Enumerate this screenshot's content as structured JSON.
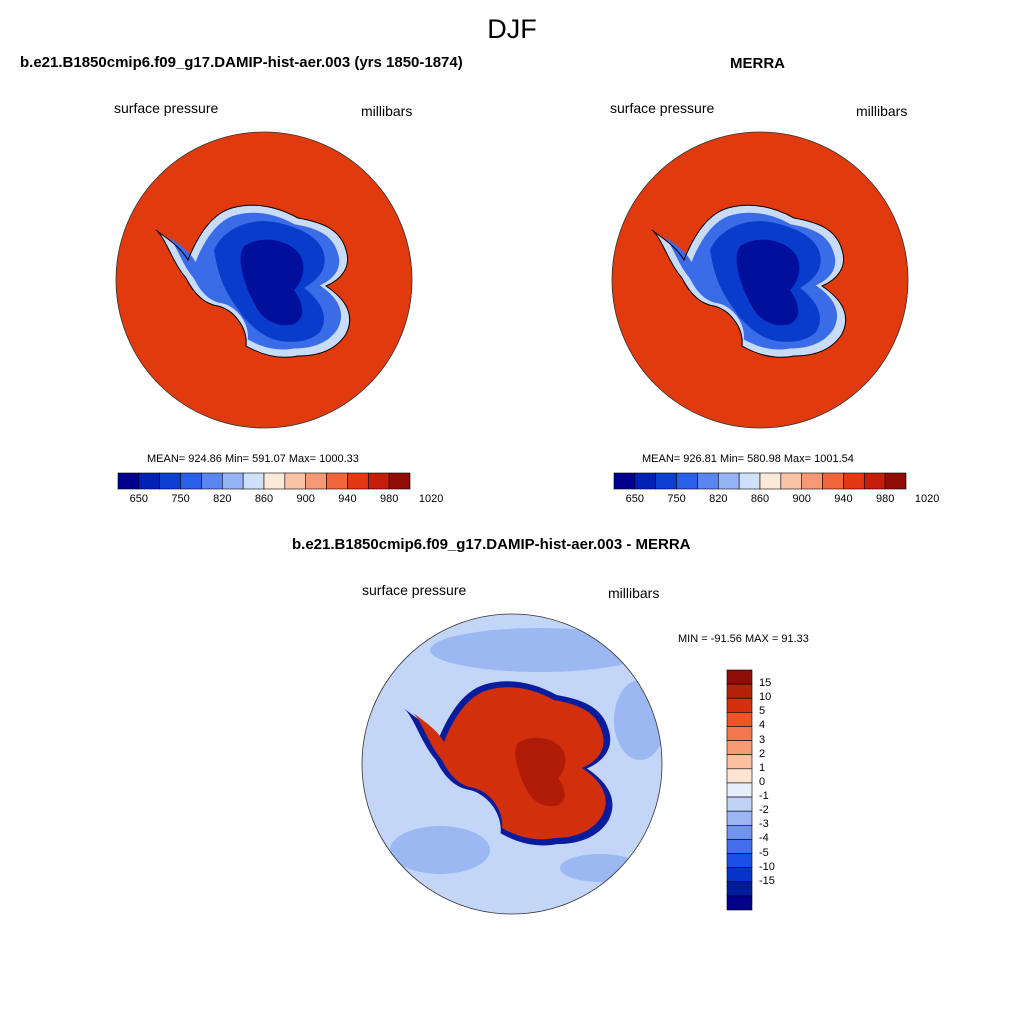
{
  "season": "DJF",
  "panels": [
    {
      "title": "b.e21.B1850cmip6.f09_g17.DAMIP-hist-aer.003 (yrs 1850-1874)",
      "variable": "surface pressure",
      "units": "millibars",
      "stats": "MEAN= 924.86  Min= 591.07  Max= 1000.33"
    },
    {
      "title": "MERRA",
      "variable": "surface pressure",
      "units": "millibars",
      "stats": "MEAN= 926.81  Min= 580.98  Max= 1001.54"
    }
  ],
  "diff_panel": {
    "title": "b.e21.B1850cmip6.f09_g17.DAMIP-hist-aer.003 - MERRA",
    "variable": "surface pressure",
    "units": "millibars",
    "stats": "MIN = -91.56 MAX =  91.33"
  },
  "abs_colorbar": {
    "colors": [
      "#00008c",
      "#0022b4",
      "#0a3fd2",
      "#2a5fe8",
      "#5b86f0",
      "#95b4f6",
      "#cfe0fb",
      "#fde9da",
      "#f9c3a6",
      "#f59a75",
      "#f0673e",
      "#e63512",
      "#c41e0a",
      "#8e0d06"
    ],
    "tick_labels": [
      "650",
      "750",
      "820",
      "860",
      "900",
      "940",
      "980",
      "1020"
    ]
  },
  "diff_colorbar": {
    "colors": [
      "#8e0d06",
      "#b42008",
      "#d4300c",
      "#f0522a",
      "#f5774c",
      "#f89c76",
      "#fbc0a0",
      "#fde4d2",
      "#e6eefc",
      "#c0d2f6",
      "#9bb6f2",
      "#6f93ee",
      "#4270ec",
      "#1a4fe8",
      "#0634c8",
      "#001c9c",
      "#00008a"
    ],
    "tick_labels": [
      "15",
      "10",
      "5",
      "4",
      "3",
      "2",
      "1",
      "0",
      "-1",
      "-2",
      "-3",
      "-4",
      "-5",
      "-10",
      "-15"
    ]
  },
  "map_colors": {
    "ocean_abs": "#e03a0e",
    "plateau": "#00109a",
    "interior": "#0a3ccc",
    "slope": "#3a6ce8",
    "edge": "#c8dcfa",
    "diff_ocean": "#c4d6f8",
    "diff_ocean_dark": "#9bb8f2",
    "diff_land": "#d2300c",
    "diff_coast": "#0a1c9e"
  }
}
